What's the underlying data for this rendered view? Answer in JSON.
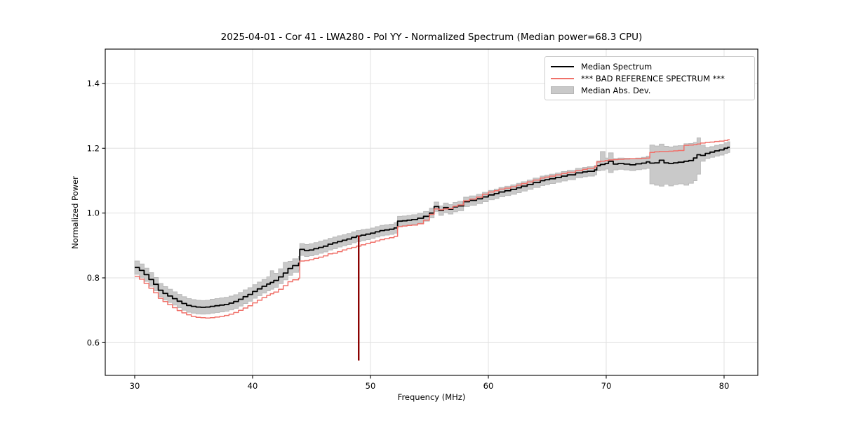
{
  "chart_data": {
    "type": "line",
    "title": "2025-04-01 - Cor 41 - LWA280 - Pol YY - Normalized Spectrum (Median power=68.3 CPU)",
    "xlabel": "Frequency (MHz)",
    "ylabel": "Normalized Power",
    "xlim": [
      27.5,
      82.86
    ],
    "ylim": [
      0.499,
      1.506
    ],
    "xticks": [
      30,
      40,
      50,
      60,
      70,
      80
    ],
    "yticks": [
      0.6,
      0.8,
      1.0,
      1.2,
      1.4
    ],
    "grid": true,
    "legend_position": "upper right",
    "legend": [
      {
        "label": "Median Spectrum",
        "type": "line",
        "color": "#000000"
      },
      {
        "label": "*** BAD REFERENCE SPECTRUM ***",
        "type": "line",
        "color": "#f0716a"
      },
      {
        "label": "Median Abs. Dev.",
        "type": "patch",
        "color": "#c9c9c9"
      }
    ],
    "colors": {
      "median": "#000000",
      "reference": "#f0716a",
      "band": "#c9c9c9",
      "band_edge": "#b8b8b8",
      "spike": "#8b0000",
      "grid": "#e0e0e0",
      "spine": "#000000"
    },
    "spike": {
      "freq_mhz": 49.0,
      "top": 0.931,
      "bottom": 0.545
    },
    "series_columns": [
      "freq_mhz",
      "median",
      "bad_reference",
      "mad_lo",
      "mad_hi"
    ],
    "rows": [
      [
        30.0,
        0.832,
        0.805,
        0.811,
        0.852
      ],
      [
        30.4,
        0.823,
        0.796,
        0.802,
        0.843
      ],
      [
        30.8,
        0.81,
        0.783,
        0.789,
        0.83
      ],
      [
        31.2,
        0.795,
        0.768,
        0.774,
        0.816
      ],
      [
        31.6,
        0.78,
        0.754,
        0.76,
        0.801
      ],
      [
        32.0,
        0.762,
        0.737,
        0.742,
        0.783
      ],
      [
        32.4,
        0.752,
        0.727,
        0.732,
        0.773
      ],
      [
        32.8,
        0.744,
        0.717,
        0.724,
        0.765
      ],
      [
        33.2,
        0.736,
        0.708,
        0.716,
        0.757
      ],
      [
        33.6,
        0.728,
        0.699,
        0.708,
        0.749
      ],
      [
        34.0,
        0.721,
        0.692,
        0.7,
        0.742
      ],
      [
        34.4,
        0.715,
        0.686,
        0.694,
        0.736
      ],
      [
        34.8,
        0.712,
        0.681,
        0.691,
        0.733
      ],
      [
        35.2,
        0.71,
        0.678,
        0.689,
        0.731
      ],
      [
        35.6,
        0.709,
        0.677,
        0.688,
        0.73
      ],
      [
        36.0,
        0.71,
        0.676,
        0.689,
        0.731
      ],
      [
        36.4,
        0.712,
        0.677,
        0.691,
        0.734
      ],
      [
        36.8,
        0.714,
        0.679,
        0.693,
        0.736
      ],
      [
        37.2,
        0.716,
        0.681,
        0.695,
        0.738
      ],
      [
        37.6,
        0.718,
        0.684,
        0.697,
        0.74
      ],
      [
        38.0,
        0.722,
        0.688,
        0.701,
        0.744
      ],
      [
        38.4,
        0.727,
        0.693,
        0.706,
        0.748
      ],
      [
        38.8,
        0.734,
        0.7,
        0.713,
        0.755
      ],
      [
        39.2,
        0.742,
        0.707,
        0.721,
        0.763
      ],
      [
        39.6,
        0.749,
        0.714,
        0.728,
        0.77
      ],
      [
        40.0,
        0.758,
        0.723,
        0.737,
        0.779
      ],
      [
        40.4,
        0.766,
        0.731,
        0.745,
        0.787
      ],
      [
        40.8,
        0.774,
        0.739,
        0.753,
        0.795
      ],
      [
        41.2,
        0.781,
        0.746,
        0.76,
        0.803
      ],
      [
        41.5,
        0.786,
        0.751,
        0.765,
        0.822
      ],
      [
        41.8,
        0.792,
        0.756,
        0.771,
        0.814
      ],
      [
        42.2,
        0.803,
        0.765,
        0.782,
        0.828
      ],
      [
        42.6,
        0.815,
        0.776,
        0.794,
        0.848
      ],
      [
        43.0,
        0.829,
        0.788,
        0.808,
        0.851
      ],
      [
        43.4,
        0.838,
        0.794,
        0.817,
        0.859
      ],
      [
        43.9,
        0.845,
        0.799,
        0.824,
        0.866
      ],
      [
        44.0,
        0.888,
        0.852,
        0.869,
        0.906
      ],
      [
        44.4,
        0.884,
        0.853,
        0.866,
        0.903
      ],
      [
        44.8,
        0.886,
        0.856,
        0.868,
        0.905
      ],
      [
        45.2,
        0.89,
        0.86,
        0.872,
        0.909
      ],
      [
        45.6,
        0.894,
        0.864,
        0.876,
        0.913
      ],
      [
        46.0,
        0.898,
        0.868,
        0.88,
        0.917
      ],
      [
        46.4,
        0.904,
        0.874,
        0.886,
        0.922
      ],
      [
        46.8,
        0.908,
        0.876,
        0.89,
        0.926
      ],
      [
        47.2,
        0.912,
        0.881,
        0.895,
        0.93
      ],
      [
        47.6,
        0.916,
        0.886,
        0.899,
        0.933
      ],
      [
        48.0,
        0.92,
        0.89,
        0.903,
        0.937
      ],
      [
        48.4,
        0.925,
        0.894,
        0.908,
        0.942
      ],
      [
        48.8,
        0.929,
        0.898,
        0.912,
        0.946
      ],
      [
        49.2,
        0.932,
        0.902,
        0.915,
        0.949
      ],
      [
        49.6,
        0.935,
        0.906,
        0.918,
        0.951
      ],
      [
        50.0,
        0.938,
        0.91,
        0.922,
        0.954
      ],
      [
        50.4,
        0.942,
        0.914,
        0.926,
        0.958
      ],
      [
        50.8,
        0.946,
        0.918,
        0.93,
        0.962
      ],
      [
        51.2,
        0.948,
        0.921,
        0.932,
        0.964
      ],
      [
        51.6,
        0.95,
        0.924,
        0.934,
        0.966
      ],
      [
        52.0,
        0.954,
        0.928,
        0.938,
        0.97
      ],
      [
        52.3,
        0.975,
        0.958,
        0.96,
        0.99
      ],
      [
        52.7,
        0.976,
        0.96,
        0.961,
        0.991
      ],
      [
        53.1,
        0.978,
        0.962,
        0.963,
        0.993
      ],
      [
        53.5,
        0.98,
        0.963,
        0.965,
        0.995
      ],
      [
        54.0,
        0.984,
        0.967,
        0.969,
        0.999
      ],
      [
        54.5,
        0.99,
        0.978,
        0.975,
        1.005
      ],
      [
        55.0,
        1.0,
        0.996,
        0.985,
        1.015
      ],
      [
        55.4,
        1.02,
        1.013,
        1.005,
        1.034
      ],
      [
        55.8,
        1.008,
        1.01,
        0.993,
        1.022
      ],
      [
        56.2,
        1.017,
        1.013,
        1.002,
        1.031
      ],
      [
        56.6,
        1.012,
        1.014,
        0.997,
        1.026
      ],
      [
        57.0,
        1.019,
        1.021,
        1.004,
        1.033
      ],
      [
        57.4,
        1.022,
        1.025,
        1.007,
        1.036
      ],
      [
        57.9,
        1.035,
        1.038,
        1.02,
        1.049
      ],
      [
        58.4,
        1.039,
        1.043,
        1.024,
        1.053
      ],
      [
        59.0,
        1.044,
        1.049,
        1.029,
        1.058
      ],
      [
        59.5,
        1.05,
        1.058,
        1.035,
        1.064
      ],
      [
        60.0,
        1.056,
        1.065,
        1.041,
        1.07
      ],
      [
        60.5,
        1.06,
        1.069,
        1.045,
        1.074
      ],
      [
        60.9,
        1.065,
        1.074,
        1.05,
        1.079
      ],
      [
        61.4,
        1.069,
        1.077,
        1.054,
        1.083
      ],
      [
        61.9,
        1.073,
        1.081,
        1.058,
        1.087
      ],
      [
        62.4,
        1.078,
        1.086,
        1.063,
        1.092
      ],
      [
        62.8,
        1.083,
        1.091,
        1.068,
        1.097
      ],
      [
        63.3,
        1.088,
        1.096,
        1.073,
        1.102
      ],
      [
        63.8,
        1.094,
        1.102,
        1.079,
        1.108
      ],
      [
        64.4,
        1.1,
        1.108,
        1.085,
        1.114
      ],
      [
        64.8,
        1.103,
        1.111,
        1.088,
        1.117
      ],
      [
        65.2,
        1.106,
        1.114,
        1.091,
        1.12
      ],
      [
        65.7,
        1.11,
        1.118,
        1.095,
        1.124
      ],
      [
        66.2,
        1.114,
        1.122,
        1.099,
        1.128
      ],
      [
        66.7,
        1.118,
        1.126,
        1.103,
        1.132
      ],
      [
        67.4,
        1.124,
        1.131,
        1.109,
        1.138
      ],
      [
        68.0,
        1.127,
        1.135,
        1.112,
        1.141
      ],
      [
        68.4,
        1.129,
        1.138,
        1.114,
        1.143
      ],
      [
        69.0,
        1.133,
        1.143,
        1.118,
        1.147
      ],
      [
        69.2,
        1.146,
        1.158,
        1.13,
        1.161
      ],
      [
        69.5,
        1.15,
        1.16,
        1.132,
        1.19
      ],
      [
        69.9,
        1.153,
        1.162,
        1.136,
        1.17
      ],
      [
        70.2,
        1.16,
        1.164,
        1.125,
        1.186
      ],
      [
        70.6,
        1.151,
        1.165,
        1.133,
        1.168
      ],
      [
        71.0,
        1.153,
        1.166,
        1.135,
        1.17
      ],
      [
        71.5,
        1.151,
        1.167,
        1.133,
        1.169
      ],
      [
        72.0,
        1.149,
        1.168,
        1.131,
        1.168
      ],
      [
        72.5,
        1.152,
        1.168,
        1.134,
        1.17
      ],
      [
        73.0,
        1.154,
        1.169,
        1.136,
        1.172
      ],
      [
        73.4,
        1.158,
        1.17,
        1.138,
        1.176
      ],
      [
        73.7,
        1.154,
        1.187,
        1.09,
        1.21
      ],
      [
        74.1,
        1.155,
        1.189,
        1.086,
        1.207
      ],
      [
        74.5,
        1.163,
        1.19,
        1.083,
        1.213
      ],
      [
        74.9,
        1.155,
        1.19,
        1.089,
        1.206
      ],
      [
        75.3,
        1.153,
        1.191,
        1.084,
        1.204
      ],
      [
        75.7,
        1.155,
        1.192,
        1.088,
        1.207
      ],
      [
        76.1,
        1.157,
        1.193,
        1.09,
        1.208
      ],
      [
        76.6,
        1.16,
        1.209,
        1.086,
        1.214
      ],
      [
        77.0,
        1.162,
        1.21,
        1.092,
        1.215
      ],
      [
        77.4,
        1.17,
        1.211,
        1.1,
        1.218
      ],
      [
        77.7,
        1.18,
        1.213,
        1.12,
        1.232
      ],
      [
        78.0,
        1.178,
        1.216,
        1.16,
        1.21
      ],
      [
        78.4,
        1.184,
        1.218,
        1.168,
        1.202
      ],
      [
        78.8,
        1.188,
        1.219,
        1.172,
        1.205
      ],
      [
        79.2,
        1.192,
        1.221,
        1.176,
        1.209
      ],
      [
        79.6,
        1.195,
        1.222,
        1.179,
        1.212
      ],
      [
        80.0,
        1.2,
        1.224,
        1.184,
        1.217
      ],
      [
        80.3,
        1.203,
        1.226,
        1.187,
        1.22
      ]
    ]
  }
}
